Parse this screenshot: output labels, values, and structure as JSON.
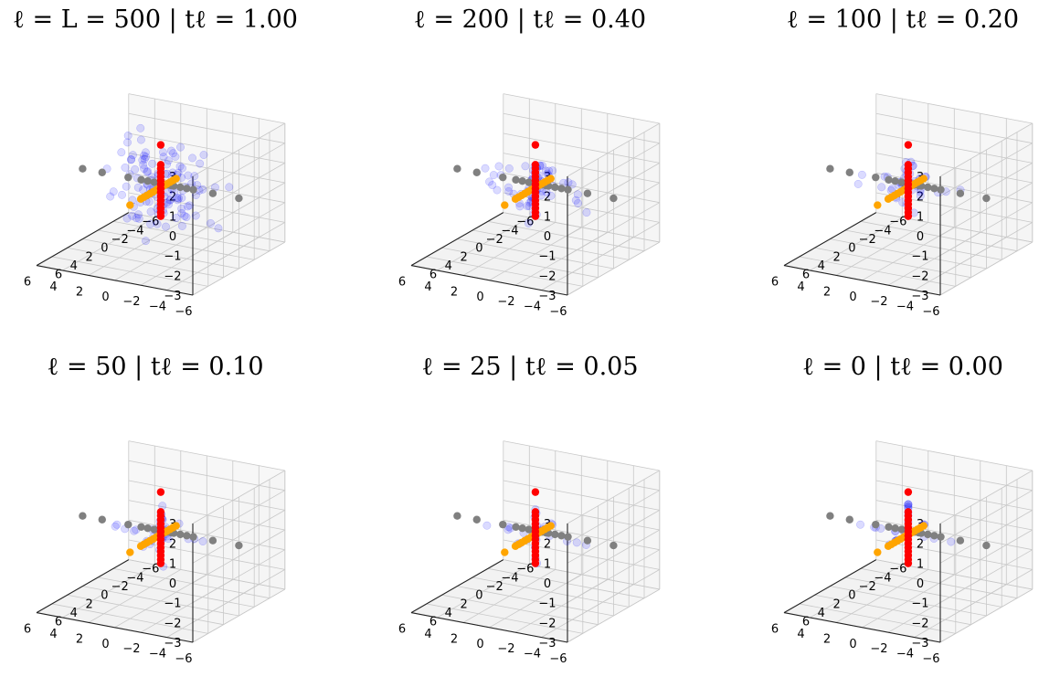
{
  "figure": {
    "title": "",
    "colors": {
      "x_axis": "#808080",
      "y_axis": "#FFA500",
      "z_axis": "#FF0000",
      "cloud": "#0000FF",
      "pane": "#F2F2F2",
      "grid": "#C8C8C8"
    }
  },
  "chart_data": [
    {
      "type": "scatter",
      "title": "ℓ = L = 500 | tℓ = 1.00",
      "step": 500,
      "t": 1.0,
      "xlim": [
        -6,
        6
      ],
      "ylim": [
        -6,
        6
      ],
      "zlim": [
        -3,
        3
      ],
      "xticks": [
        "−6",
        "−4",
        "−2",
        "0",
        "2",
        "4",
        "6"
      ],
      "yticks": [
        "−6",
        "−4",
        "−2",
        "0",
        "2",
        "4",
        "6"
      ],
      "zticks": [
        "−3",
        "−2",
        "−1",
        "0",
        "1",
        "2",
        "3"
      ],
      "series": [
        {
          "color": "#808080",
          "axis": "x",
          "points": [
            -6,
            -4,
            -2.5,
            -2,
            -1.5,
            -1,
            -0.8,
            -0.5,
            0,
            0.5,
            1,
            1.5,
            2.5,
            4.5,
            6
          ]
        },
        {
          "color": "#FFA500",
          "axis": "y",
          "points": [
            -2,
            -1.6,
            -1.2,
            -0.8,
            -0.5,
            -0.2,
            0,
            0.3,
            0.6,
            1,
            1.4,
            1.8,
            2.2,
            2.6,
            4
          ]
        },
        {
          "color": "#FF0000",
          "axis": "z",
          "points": [
            2.5,
            1.5,
            1.3,
            1.1,
            0.9,
            0.7,
            0.5,
            0.3,
            0.1,
            -0.1,
            -0.3,
            -0.5,
            -0.7,
            -0.9,
            -1.1
          ]
        },
        {
          "color": "#0000FF",
          "cloud": true,
          "spread": 1.0
        }
      ]
    },
    {
      "type": "scatter",
      "title": "ℓ = 200 | tℓ = 0.40",
      "step": 200,
      "t": 0.4,
      "xlim": [
        -6,
        6
      ],
      "ylim": [
        -6,
        6
      ],
      "zlim": [
        -3,
        3
      ],
      "xticks": [
        "−6",
        "−4",
        "−2",
        "0",
        "2",
        "4",
        "6"
      ],
      "yticks": [
        "−6",
        "−4",
        "−2",
        "0",
        "2",
        "4",
        "6"
      ],
      "zticks": [
        "−3",
        "−2",
        "−1",
        "0",
        "1",
        "2",
        "3"
      ],
      "series": [
        {
          "color": "#808080",
          "axis": "x",
          "points": [
            -6,
            -4,
            -2.5,
            -2,
            -1.5,
            -1,
            -0.8,
            -0.5,
            0,
            0.5,
            1,
            1.5,
            2.5,
            4.5,
            6
          ]
        },
        {
          "color": "#FFA500",
          "axis": "y",
          "points": [
            -2,
            -1.6,
            -1.2,
            -0.8,
            -0.5,
            -0.2,
            0,
            0.3,
            0.6,
            1,
            1.4,
            1.8,
            2.2,
            2.6,
            4
          ]
        },
        {
          "color": "#FF0000",
          "axis": "z",
          "points": [
            2.5,
            1.5,
            1.3,
            1.1,
            0.9,
            0.7,
            0.5,
            0.3,
            0.1,
            -0.1,
            -0.3,
            -0.5,
            -0.7,
            -0.9,
            -1.1
          ]
        },
        {
          "color": "#0000FF",
          "cloud": true,
          "spread": 0.4
        }
      ]
    },
    {
      "type": "scatter",
      "title": "ℓ = 100 | tℓ = 0.20",
      "step": 100,
      "t": 0.2,
      "xlim": [
        -6,
        6
      ],
      "ylim": [
        -6,
        6
      ],
      "zlim": [
        -3,
        3
      ],
      "xticks": [
        "−6",
        "−4",
        "−2",
        "0",
        "2",
        "4",
        "6"
      ],
      "yticks": [
        "−6",
        "−4",
        "−2",
        "0",
        "2",
        "4",
        "6"
      ],
      "zticks": [
        "−3",
        "−2",
        "−1",
        "0",
        "1",
        "2",
        "3"
      ],
      "series": [
        {
          "color": "#808080",
          "axis": "x",
          "points": [
            -6,
            -4,
            -2.5,
            -2,
            -1.5,
            -1,
            -0.8,
            -0.5,
            0,
            0.5,
            1,
            1.5,
            2.5,
            4.5,
            6
          ]
        },
        {
          "color": "#FFA500",
          "axis": "y",
          "points": [
            -2,
            -1.6,
            -1.2,
            -0.8,
            -0.5,
            -0.2,
            0,
            0.3,
            0.6,
            1,
            1.4,
            1.8,
            2.2,
            2.6,
            4
          ]
        },
        {
          "color": "#FF0000",
          "axis": "z",
          "points": [
            2.5,
            1.5,
            1.3,
            1.1,
            0.9,
            0.7,
            0.5,
            0.3,
            0.1,
            -0.1,
            -0.3,
            -0.5,
            -0.7,
            -0.9,
            -1.1
          ]
        },
        {
          "color": "#0000FF",
          "cloud": true,
          "spread": 0.2
        }
      ]
    },
    {
      "type": "scatter",
      "title": "ℓ = 50 | tℓ = 0.10",
      "step": 50,
      "t": 0.1,
      "xlim": [
        -6,
        6
      ],
      "ylim": [
        -6,
        6
      ],
      "zlim": [
        -3,
        3
      ],
      "xticks": [
        "−6",
        "−4",
        "−2",
        "0",
        "2",
        "4",
        "6"
      ],
      "yticks": [
        "−6",
        "−4",
        "−2",
        "0",
        "2",
        "4",
        "6"
      ],
      "zticks": [
        "−3",
        "−2",
        "−1",
        "0",
        "1",
        "2",
        "3"
      ],
      "series": [
        {
          "color": "#808080",
          "axis": "x",
          "points": [
            -6,
            -4,
            -2.5,
            -2,
            -1.5,
            -1,
            -0.8,
            -0.5,
            0,
            0.5,
            1,
            1.5,
            2.5,
            4.5,
            6
          ]
        },
        {
          "color": "#FFA500",
          "axis": "y",
          "points": [
            -2,
            -1.6,
            -1.2,
            -0.8,
            -0.5,
            -0.2,
            0,
            0.3,
            0.6,
            1,
            1.4,
            1.8,
            2.2,
            2.6,
            4
          ]
        },
        {
          "color": "#FF0000",
          "axis": "z",
          "points": [
            2.5,
            1.5,
            1.3,
            1.1,
            0.9,
            0.7,
            0.5,
            0.3,
            0.1,
            -0.1,
            -0.3,
            -0.5,
            -0.7,
            -0.9,
            -1.1
          ]
        },
        {
          "color": "#0000FF",
          "cloud": true,
          "spread": 0.1
        }
      ]
    },
    {
      "type": "scatter",
      "title": "ℓ = 25 | tℓ = 0.05",
      "step": 25,
      "t": 0.05,
      "xlim": [
        -6,
        6
      ],
      "ylim": [
        -6,
        6
      ],
      "zlim": [
        -3,
        3
      ],
      "xticks": [
        "−6",
        "−4",
        "−2",
        "0",
        "2",
        "4",
        "6"
      ],
      "yticks": [
        "−6",
        "−4",
        "−2",
        "0",
        "2",
        "4",
        "6"
      ],
      "zticks": [
        "−3",
        "−2",
        "−1",
        "0",
        "1",
        "2",
        "3"
      ],
      "series": [
        {
          "color": "#808080",
          "axis": "x",
          "points": [
            -6,
            -4,
            -2.5,
            -2,
            -1.5,
            -1,
            -0.8,
            -0.5,
            0,
            0.5,
            1,
            1.5,
            2.5,
            4.5,
            6
          ]
        },
        {
          "color": "#FFA500",
          "axis": "y",
          "points": [
            -2,
            -1.6,
            -1.2,
            -0.8,
            -0.5,
            -0.2,
            0,
            0.3,
            0.6,
            1,
            1.4,
            1.8,
            2.2,
            2.6,
            4
          ]
        },
        {
          "color": "#FF0000",
          "axis": "z",
          "points": [
            2.5,
            1.5,
            1.3,
            1.1,
            0.9,
            0.7,
            0.5,
            0.3,
            0.1,
            -0.1,
            -0.3,
            -0.5,
            -0.7,
            -0.9,
            -1.1
          ]
        },
        {
          "color": "#0000FF",
          "cloud": true,
          "spread": 0.05
        }
      ]
    },
    {
      "type": "scatter",
      "title": "ℓ = 0 | tℓ = 0.00",
      "step": 0,
      "t": 0.0,
      "xlim": [
        -6,
        6
      ],
      "ylim": [
        -6,
        6
      ],
      "zlim": [
        -3,
        3
      ],
      "xticks": [
        "−6",
        "−4",
        "−2",
        "0",
        "2",
        "4",
        "6"
      ],
      "yticks": [
        "−6",
        "−4",
        "−2",
        "0",
        "2",
        "4",
        "6"
      ],
      "zticks": [
        "−3",
        "−2",
        "−1",
        "0",
        "1",
        "2",
        "3"
      ],
      "series": [
        {
          "color": "#808080",
          "axis": "x",
          "points": [
            -6,
            -4,
            -2.5,
            -2,
            -1.5,
            -1,
            -0.8,
            -0.5,
            0,
            0.5,
            1,
            1.5,
            2.5,
            4.5,
            6
          ]
        },
        {
          "color": "#FFA500",
          "axis": "y",
          "points": [
            -2,
            -1.6,
            -1.2,
            -0.8,
            -0.5,
            -0.2,
            0,
            0.3,
            0.6,
            1,
            1.4,
            1.8,
            2.2,
            2.6,
            4
          ]
        },
        {
          "color": "#FF0000",
          "axis": "z",
          "points": [
            2.5,
            1.5,
            1.3,
            1.1,
            0.9,
            0.7,
            0.5,
            0.3,
            0.1,
            -0.1,
            -0.3,
            -0.5,
            -0.7,
            -0.9,
            -1.1
          ]
        },
        {
          "color": "#0000FF",
          "cloud": true,
          "spread": 0.0
        }
      ]
    }
  ]
}
